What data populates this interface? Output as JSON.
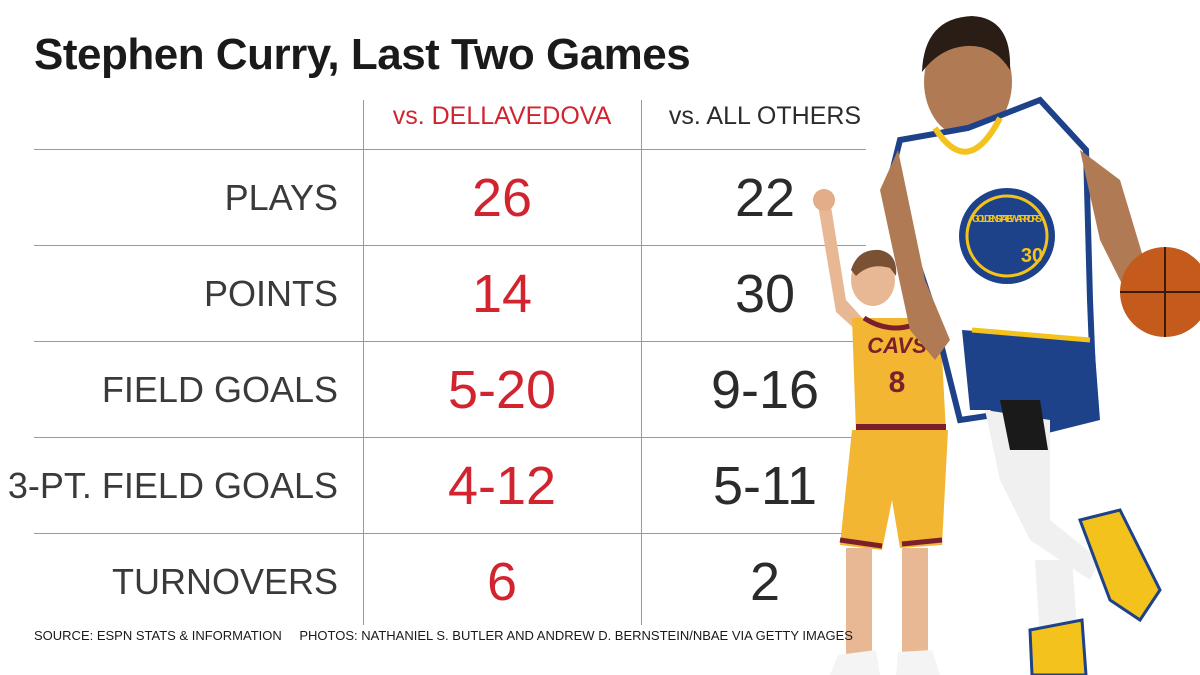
{
  "title": "Stephen Curry, Last Two Games",
  "columns": [
    "vs. DELLAVEDOVA",
    "vs. ALL OTHERS"
  ],
  "rows": [
    {
      "label": "PLAYS",
      "dellavedova": "26",
      "others": "22"
    },
    {
      "label": "POINTS",
      "dellavedova": "14",
      "others": "30"
    },
    {
      "label": "FIELD GOALS",
      "dellavedova": "5-20",
      "others": "9-16"
    },
    {
      "label": "3-PT. FIELD GOALS",
      "dellavedova": "4-12",
      "others": "5-11"
    },
    {
      "label": "TURNOVERS",
      "dellavedova": "6",
      "others": "2"
    }
  ],
  "footer": {
    "source": "SOURCE: ESPN STATS & INFORMATION",
    "photos": "PHOTOS: NATHANIEL S. BUTLER AND ANDREW D. BERNSTEIN/NBAE VIA GETTY IMAGES"
  },
  "jersey": {
    "dellavedova_team": "CAVS",
    "dellavedova_number": "8",
    "curry_team": "GOLDEN STATE WARRIORS",
    "curry_number": "30"
  },
  "colors": {
    "accent_red": "#d1242f",
    "text_dark": "#2b2b2b",
    "cavs_gold": "#f2b632",
    "cavs_wine": "#7a1f2b",
    "warriors_blue": "#1d428a",
    "warriors_gold": "#f4c21c"
  }
}
